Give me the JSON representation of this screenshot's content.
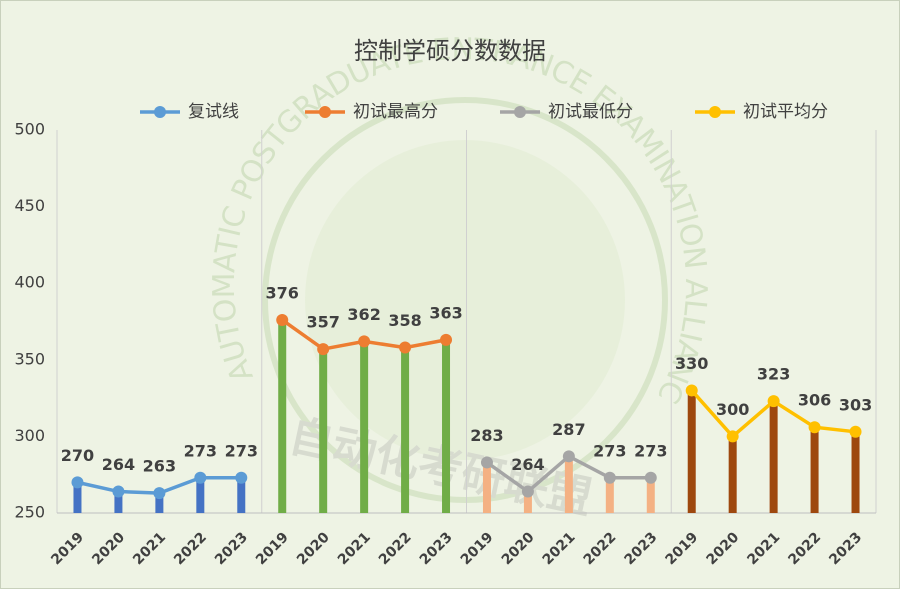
{
  "chart_data": {
    "type": "line",
    "title": "控制学硕分数数据",
    "categories": [
      "2019",
      "2020",
      "2021",
      "2022",
      "2023",
      "2019",
      "2020",
      "2021",
      "2022",
      "2023",
      "2019",
      "2020",
      "2021",
      "2022",
      "2023",
      "2019",
      "2020",
      "2021",
      "2022",
      "2023"
    ],
    "series": [
      {
        "name": "复试线",
        "color": "#5b9bd5",
        "bar_color": "#4472c4",
        "values": [
          270,
          264,
          263,
          273,
          273,
          null,
          null,
          null,
          null,
          null,
          null,
          null,
          null,
          null,
          null,
          null,
          null,
          null,
          null,
          null
        ]
      },
      {
        "name": "初试最高分",
        "color": "#ed7d31",
        "bar_color": "#70ad47",
        "values": [
          null,
          null,
          null,
          null,
          null,
          376,
          357,
          362,
          358,
          363,
          null,
          null,
          null,
          null,
          null,
          null,
          null,
          null,
          null,
          null
        ]
      },
      {
        "name": "初试最低分",
        "color": "#a5a5a5",
        "bar_color": "#f4b183",
        "values": [
          null,
          null,
          null,
          null,
          null,
          null,
          null,
          null,
          null,
          null,
          283,
          264,
          287,
          273,
          273,
          null,
          null,
          null,
          null,
          null
        ]
      },
      {
        "name": "初试平均分",
        "color": "#ffc000",
        "bar_color": "#9e480e",
        "values": [
          null,
          null,
          null,
          null,
          null,
          null,
          null,
          null,
          null,
          null,
          null,
          null,
          null,
          null,
          null,
          330,
          300,
          323,
          306,
          303
        ]
      }
    ],
    "ylim": [
      250,
      500
    ],
    "yticks": [
      250,
      300,
      350,
      400,
      450,
      500
    ],
    "legend": "top",
    "watermark": {
      "ring_text": "AUTOMATIC POSTGRADUATE ENTRANCE EXAMINATION ALLIANCE",
      "stamp_text": "自动化考研联盟"
    }
  }
}
